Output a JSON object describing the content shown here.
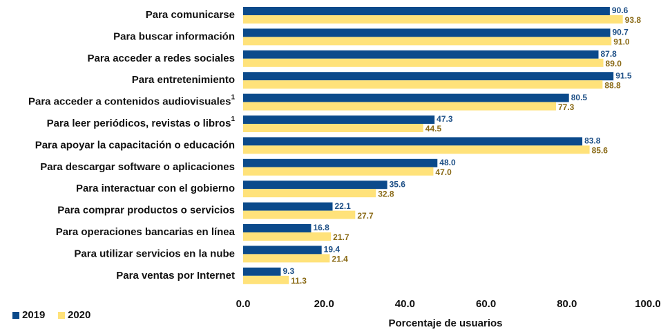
{
  "chart_data": {
    "type": "hbar",
    "categories": [
      "Para comunicarse",
      "Para buscar información",
      "Para acceder a redes sociales",
      "Para entretenimiento",
      "Para acceder a contenidos audiovisuales",
      "Para leer periódicos, revistas o libros",
      "Para apoyar la capacitación o educación",
      "Para descargar software o aplicaciones",
      "Para interactuar con el gobierno",
      "Para comprar productos o servicios",
      "Para operaciones bancarias en línea",
      "Para utilizar servicios en la nube",
      "Para ventas por Internet"
    ],
    "category_notes": [
      null,
      null,
      null,
      null,
      "1",
      "1",
      null,
      null,
      null,
      null,
      null,
      null,
      null
    ],
    "series": [
      {
        "name": "2019",
        "color": "#0b4a8b",
        "label_color": "#1d4f86",
        "values": [
          90.6,
          90.7,
          87.8,
          91.5,
          80.5,
          47.3,
          83.8,
          48.0,
          35.6,
          22.1,
          16.8,
          19.4,
          9.3
        ],
        "value_labels": [
          "90.6",
          "90.7",
          "87.8",
          "91.5",
          "80.5",
          "47.3",
          "83.8",
          "48.0",
          "35.6",
          "22.1",
          "16.8",
          "19.4",
          "9.3"
        ]
      },
      {
        "name": "2020",
        "color": "#ffe27a",
        "label_color": "#8a6a16",
        "values": [
          93.8,
          91.0,
          89.0,
          88.8,
          77.3,
          44.5,
          85.6,
          47.0,
          32.8,
          27.7,
          21.7,
          21.4,
          11.3
        ],
        "value_labels": [
          "93.8",
          "91.0",
          "89.0",
          "88.8",
          "77.3",
          "44.5",
          "85.6",
          "47.0",
          "32.8",
          "27.7",
          "21.7",
          "21.4",
          "11.3"
        ]
      }
    ],
    "xlabel": "Porcentaje de usuarios",
    "xlim": [
      0,
      100
    ],
    "xticks": [
      {
        "value": 0,
        "label": "0.0"
      },
      {
        "value": 20,
        "label": "20.0"
      },
      {
        "value": 40,
        "label": "40.0"
      },
      {
        "value": 60,
        "label": "60.0"
      },
      {
        "value": 80,
        "label": "80.0"
      },
      {
        "value": 100,
        "label": "100.0"
      }
    ],
    "legend": "bottom-left"
  }
}
